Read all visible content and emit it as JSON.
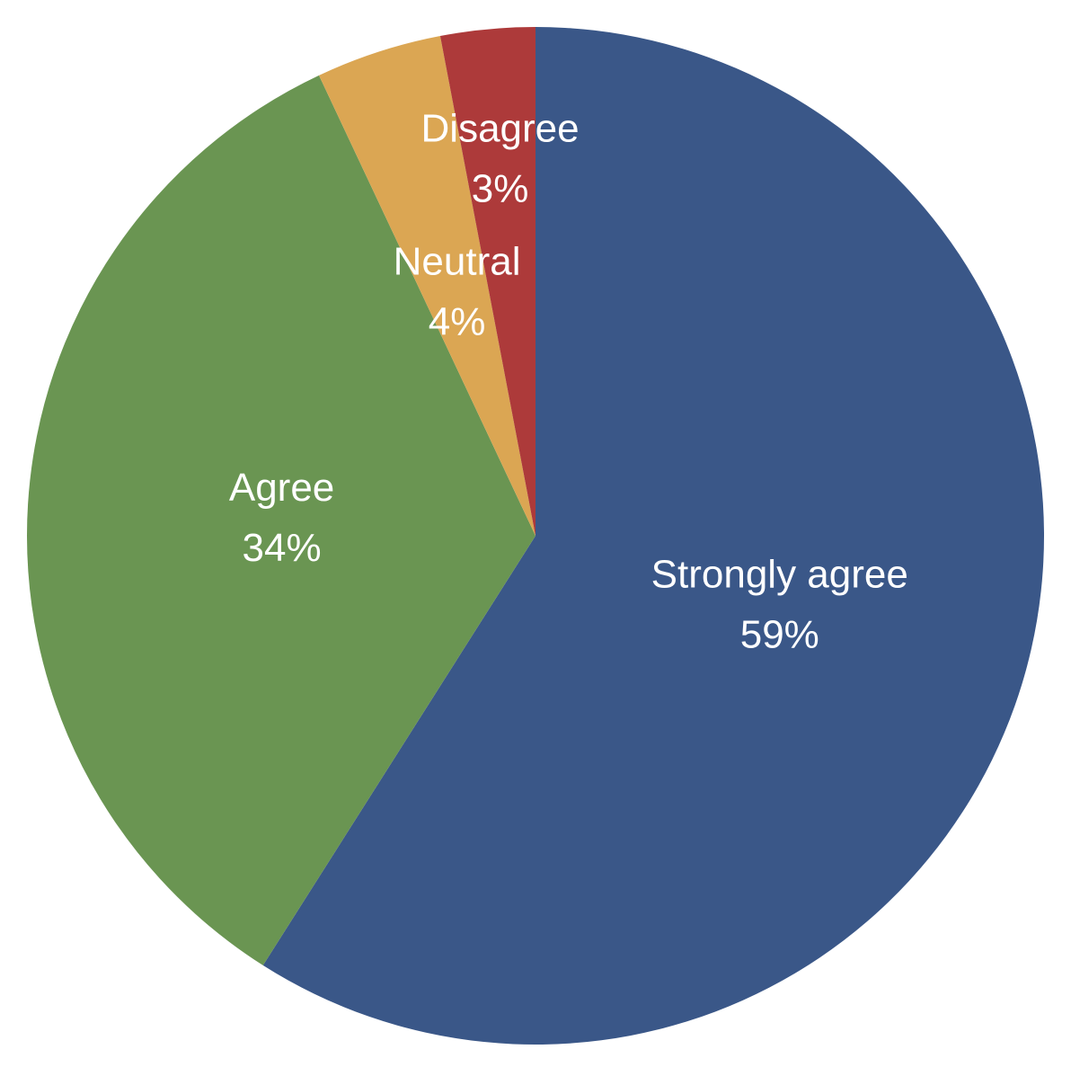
{
  "chart_data": {
    "type": "pie",
    "categories": [
      "Strongly agree",
      "Agree",
      "Neutral",
      "Disagree"
    ],
    "values": [
      59,
      34,
      4,
      3
    ],
    "value_labels": [
      "59%",
      "34%",
      "4%",
      "3%"
    ],
    "colors": [
      "#3a5788",
      "#6a9552",
      "#dba653",
      "#ad3a3a"
    ]
  }
}
